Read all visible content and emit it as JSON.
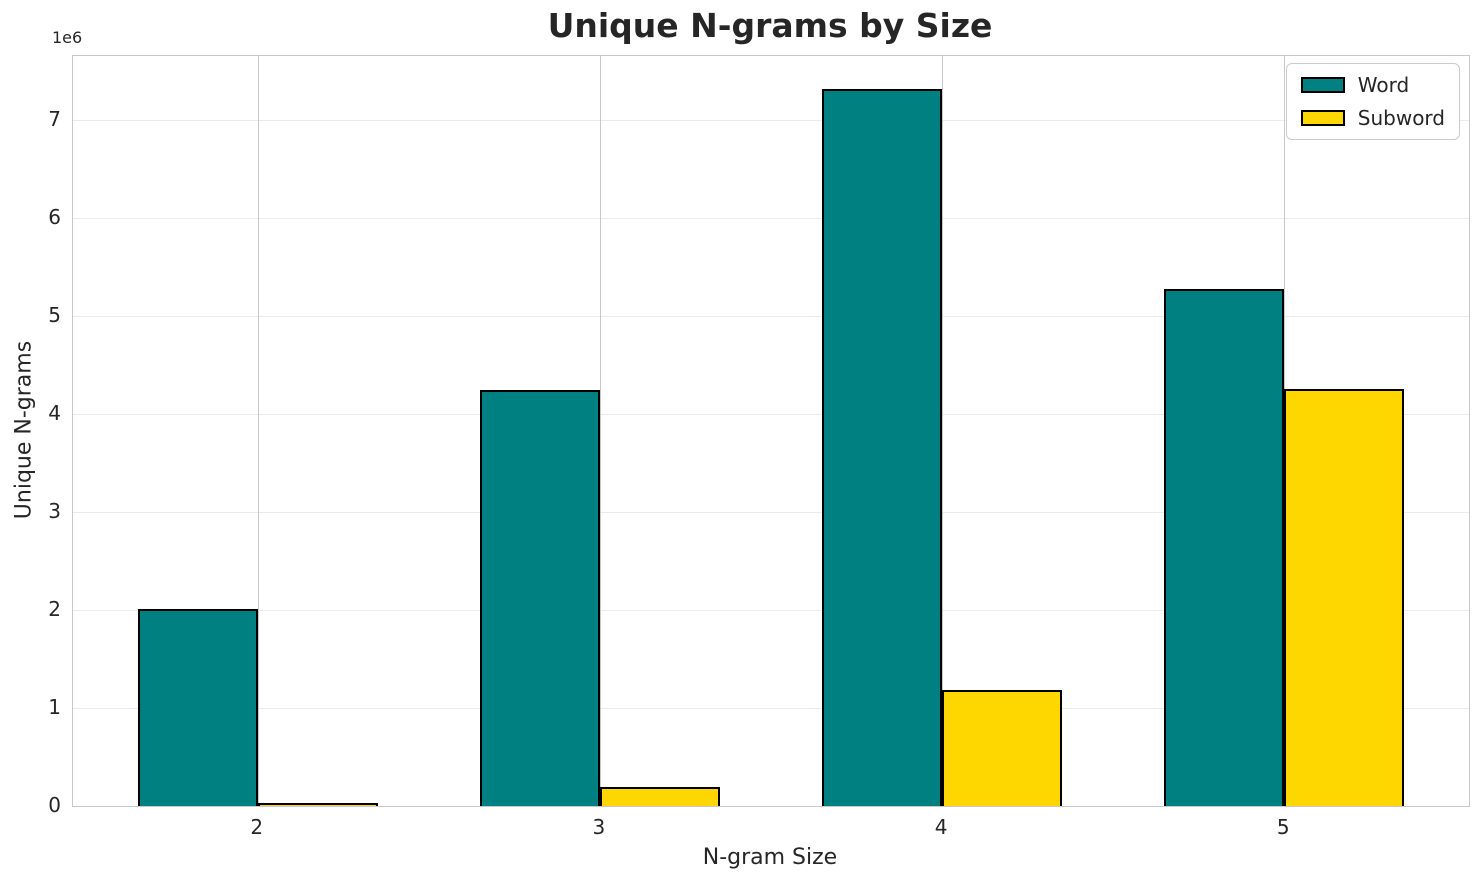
{
  "chart_data": {
    "type": "bar",
    "title": "Unique N-grams by Size",
    "xlabel": "N-gram Size",
    "ylabel": "Unique N-grams",
    "y_offset_label": "1e6",
    "categories": [
      "2",
      "3",
      "4",
      "5"
    ],
    "x": [
      2,
      3,
      4,
      5
    ],
    "series": [
      {
        "name": "Word",
        "color": "#008080",
        "values": [
          2010000,
          4240000,
          7310000,
          5270000
        ]
      },
      {
        "name": "Subword",
        "color": "#FFD700",
        "values": [
          30000,
          190000,
          1180000,
          4250000
        ]
      }
    ],
    "bar_width": 0.35,
    "bar_edge_color": "#000000",
    "xlim": [
      1.46,
      5.54
    ],
    "ylim": [
      0,
      7650000
    ],
    "yticks": [
      0,
      1000000,
      2000000,
      3000000,
      4000000,
      5000000,
      6000000,
      7000000
    ],
    "ytick_labels": [
      "0",
      "1",
      "2",
      "3",
      "4",
      "5",
      "6",
      "7"
    ],
    "grid": true,
    "legend_position": "upper right"
  }
}
